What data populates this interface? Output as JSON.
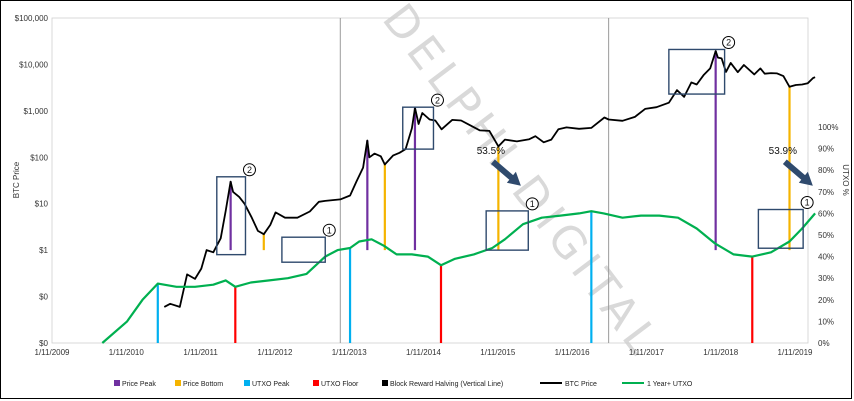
{
  "chart_data": {
    "type": "line",
    "watermark": "DELPHI DIGITAL",
    "ylabel_left": "BTC Price",
    "ylabel_right": "UTXO %",
    "y_left_scale": "log",
    "y_left_ticks": [
      "$0",
      "$0",
      "$1",
      "$10",
      "$100",
      "$1,000",
      "$10,000",
      "$100,000"
    ],
    "y_left_tick_values": [
      0.01,
      0.1,
      1,
      10,
      100,
      1000,
      10000,
      100000
    ],
    "y_right_ticks": [
      "0%",
      "10%",
      "20%",
      "30%",
      "40%",
      "50%",
      "60%",
      "70%",
      "80%",
      "90%",
      "100%"
    ],
    "x_ticks": [
      "1/11/2009",
      "1/11/2010",
      "1/11/2011",
      "1/11/2012",
      "1/11/2013",
      "1/11/2014",
      "1/11/2015",
      "1/11/2016",
      "1/11/2017",
      "1/11/2018",
      "1/11/2019"
    ],
    "halvings": [
      "2012-11-28",
      "2016-07-09"
    ],
    "btc_price": [
      [
        "2010-07-17",
        0.06
      ],
      [
        "2010-08-15",
        0.07
      ],
      [
        "2010-10-01",
        0.06
      ],
      [
        "2010-11-06",
        0.3
      ],
      [
        "2010-12-15",
        0.24
      ],
      [
        "2011-01-15",
        0.4
      ],
      [
        "2011-02-10",
        1.0
      ],
      [
        "2011-03-15",
        0.9
      ],
      [
        "2011-04-20",
        1.8
      ],
      [
        "2011-05-15",
        7
      ],
      [
        "2011-06-08",
        30
      ],
      [
        "2011-06-20",
        18
      ],
      [
        "2011-07-20",
        14
      ],
      [
        "2011-08-15",
        10
      ],
      [
        "2011-09-20",
        5
      ],
      [
        "2011-10-20",
        2.6
      ],
      [
        "2011-11-18",
        2.2
      ],
      [
        "2011-12-20",
        3.5
      ],
      [
        "2012-01-15",
        6.5
      ],
      [
        "2012-03-01",
        5
      ],
      [
        "2012-05-01",
        5
      ],
      [
        "2012-07-01",
        6.8
      ],
      [
        "2012-08-15",
        11
      ],
      [
        "2012-09-15",
        11.5
      ],
      [
        "2012-11-28",
        12.4
      ],
      [
        "2013-01-15",
        15
      ],
      [
        "2013-02-15",
        30
      ],
      [
        "2013-03-20",
        60
      ],
      [
        "2013-04-10",
        230
      ],
      [
        "2013-04-20",
        100
      ],
      [
        "2013-05-15",
        120
      ],
      [
        "2013-06-15",
        105
      ],
      [
        "2013-07-05",
        70
      ],
      [
        "2013-08-15",
        110
      ],
      [
        "2013-09-15",
        125
      ],
      [
        "2013-10-15",
        150
      ],
      [
        "2013-11-15",
        420
      ],
      [
        "2013-11-30",
        1150
      ],
      [
        "2013-12-18",
        520
      ],
      [
        "2014-01-05",
        900
      ],
      [
        "2014-02-10",
        650
      ],
      [
        "2014-03-10",
        620
      ],
      [
        "2014-04-10",
        400
      ],
      [
        "2014-06-01",
        640
      ],
      [
        "2014-07-15",
        620
      ],
      [
        "2014-09-01",
        480
      ],
      [
        "2014-10-15",
        380
      ],
      [
        "2014-12-01",
        370
      ],
      [
        "2015-01-14",
        172
      ],
      [
        "2015-02-15",
        240
      ],
      [
        "2015-04-15",
        220
      ],
      [
        "2015-06-15",
        245
      ],
      [
        "2015-07-15",
        285
      ],
      [
        "2015-08-25",
        210
      ],
      [
        "2015-10-01",
        240
      ],
      [
        "2015-11-05",
        400
      ],
      [
        "2015-12-15",
        440
      ],
      [
        "2016-02-15",
        410
      ],
      [
        "2016-04-15",
        430
      ],
      [
        "2016-06-18",
        720
      ],
      [
        "2016-07-09",
        650
      ],
      [
        "2016-09-15",
        610
      ],
      [
        "2016-11-15",
        740
      ],
      [
        "2017-01-04",
        1100
      ],
      [
        "2017-03-01",
        1200
      ],
      [
        "2017-05-01",
        1500
      ],
      [
        "2017-06-10",
        2800
      ],
      [
        "2017-07-15",
        2000
      ],
      [
        "2017-08-20",
        4100
      ],
      [
        "2017-09-15",
        3700
      ],
      [
        "2017-10-20",
        6000
      ],
      [
        "2017-11-20",
        8200
      ],
      [
        "2017-12-17",
        19500
      ],
      [
        "2017-12-28",
        14000
      ],
      [
        "2018-01-15",
        13500
      ],
      [
        "2018-02-06",
        6900
      ],
      [
        "2018-03-01",
        10800
      ],
      [
        "2018-04-05",
        6800
      ],
      [
        "2018-05-05",
        9700
      ],
      [
        "2018-06-25",
        6100
      ],
      [
        "2018-07-25",
        8200
      ],
      [
        "2018-08-15",
        6300
      ],
      [
        "2018-09-15",
        6500
      ],
      [
        "2018-10-15",
        6400
      ],
      [
        "2018-11-15",
        5600
      ],
      [
        "2018-12-15",
        3300
      ],
      [
        "2019-01-15",
        3600
      ],
      [
        "2019-02-15",
        3700
      ],
      [
        "2019-03-15",
        3950
      ],
      [
        "2019-04-10",
        5100
      ],
      [
        "2019-04-20",
        5300
      ]
    ],
    "utxo_1yr_plus": [
      [
        "2009-09-15",
        0
      ],
      [
        "2010-01-15",
        10
      ],
      [
        "2010-04-01",
        20
      ],
      [
        "2010-06-15",
        27.5
      ],
      [
        "2010-09-15",
        26
      ],
      [
        "2010-12-15",
        26
      ],
      [
        "2011-03-15",
        27
      ],
      [
        "2011-05-15",
        29
      ],
      [
        "2011-07-01",
        26
      ],
      [
        "2011-09-15",
        28
      ],
      [
        "2011-12-15",
        29
      ],
      [
        "2012-03-15",
        30
      ],
      [
        "2012-06-15",
        32
      ],
      [
        "2012-09-15",
        40
      ],
      [
        "2012-11-15",
        43
      ],
      [
        "2013-01-15",
        44
      ],
      [
        "2013-03-01",
        47
      ],
      [
        "2013-05-01",
        48
      ],
      [
        "2013-07-01",
        45
      ],
      [
        "2013-09-01",
        41
      ],
      [
        "2013-11-15",
        41
      ],
      [
        "2014-02-01",
        40
      ],
      [
        "2014-04-07",
        36
      ],
      [
        "2014-06-15",
        39
      ],
      [
        "2014-09-15",
        41
      ],
      [
        "2014-12-15",
        44
      ],
      [
        "2015-02-15",
        48
      ],
      [
        "2015-05-15",
        55
      ],
      [
        "2015-08-15",
        58
      ],
      [
        "2015-11-15",
        59
      ],
      [
        "2016-02-15",
        60
      ],
      [
        "2016-04-15",
        61
      ],
      [
        "2016-06-15",
        60
      ],
      [
        "2016-09-15",
        58
      ],
      [
        "2016-12-15",
        59
      ],
      [
        "2017-03-15",
        59
      ],
      [
        "2017-06-15",
        58
      ],
      [
        "2017-09-15",
        53
      ],
      [
        "2017-12-15",
        46
      ],
      [
        "2018-03-15",
        41
      ],
      [
        "2018-06-15",
        40
      ],
      [
        "2018-09-15",
        42
      ],
      [
        "2018-12-15",
        47
      ],
      [
        "2019-02-15",
        53
      ],
      [
        "2019-04-20",
        60
      ]
    ],
    "vertical_markers": [
      {
        "type": "price_peak",
        "date": "2011-06-08"
      },
      {
        "type": "price_peak",
        "date": "2013-04-10"
      },
      {
        "type": "price_peak",
        "date": "2013-11-30"
      },
      {
        "type": "price_peak",
        "date": "2017-12-17"
      },
      {
        "type": "price_bottom",
        "date": "2011-11-18"
      },
      {
        "type": "price_bottom",
        "date": "2013-07-05"
      },
      {
        "type": "price_bottom",
        "date": "2015-01-14"
      },
      {
        "type": "price_bottom",
        "date": "2018-12-15"
      },
      {
        "type": "utxo_peak",
        "date": "2010-06-15"
      },
      {
        "type": "utxo_peak",
        "date": "2013-01-15"
      },
      {
        "type": "utxo_peak",
        "date": "2016-04-15"
      },
      {
        "type": "utxo_floor",
        "date": "2011-07-01"
      },
      {
        "type": "utxo_floor",
        "date": "2014-04-07"
      },
      {
        "type": "utxo_floor",
        "date": "2018-06-15"
      }
    ],
    "annotations": [
      {
        "text": "53.5%",
        "date": "2015-02-15",
        "price": 40
      },
      {
        "text": "53.9%",
        "date": "2019-01-20",
        "price": 40
      }
    ],
    "boxes": [
      {
        "label": "2",
        "date_from": "2011-04-01",
        "date_to": "2011-08-20",
        "price_from": 0.8,
        "price_to": 38
      },
      {
        "label": "1",
        "date_from": "2012-02-15",
        "date_to": "2012-09-15",
        "price_from": 0.55,
        "price_to": 1.9
      },
      {
        "label": "2",
        "date_from": "2013-10-01",
        "date_to": "2014-03-01",
        "price_from": 150,
        "price_to": 1200
      },
      {
        "label": "1",
        "date_from": "2014-11-15",
        "date_to": "2015-06-10",
        "price_from": 1.0,
        "price_to": 7
      },
      {
        "label": "2",
        "date_from": "2017-05-01",
        "date_to": "2018-01-30",
        "price_from": 2300,
        "price_to": 21000
      },
      {
        "label": "1",
        "date_from": "2018-07-15",
        "date_to": "2019-02-20",
        "price_from": 1.1,
        "price_to": 7.5
      }
    ],
    "legend": [
      {
        "label": "Price Peak",
        "color": "#7030a0",
        "kind": "bar"
      },
      {
        "label": "Price Bottom",
        "color": "#f5b400",
        "kind": "bar"
      },
      {
        "label": "UTXO Peak",
        "color": "#00b0f0",
        "kind": "bar"
      },
      {
        "label": "UTXO Floor",
        "color": "#ff0000",
        "kind": "bar"
      },
      {
        "label": "Block Reward Halving (Vertical Line)",
        "color": "#000000",
        "kind": "bar"
      },
      {
        "label": "BTC Price",
        "color": "#000000",
        "kind": "line"
      },
      {
        "label": "1 Year+ UTXO",
        "color": "#00b050",
        "kind": "line"
      }
    ],
    "colors": {
      "price_peak": "#7030a0",
      "price_bottom": "#f5b400",
      "utxo_peak": "#00b0f0",
      "utxo_floor": "#ff0000",
      "halving": "#9a9a9a",
      "btc": "#000000",
      "utxo": "#00b050",
      "box": "#2f4a6d",
      "arrow": "#2f4a6d"
    }
  }
}
